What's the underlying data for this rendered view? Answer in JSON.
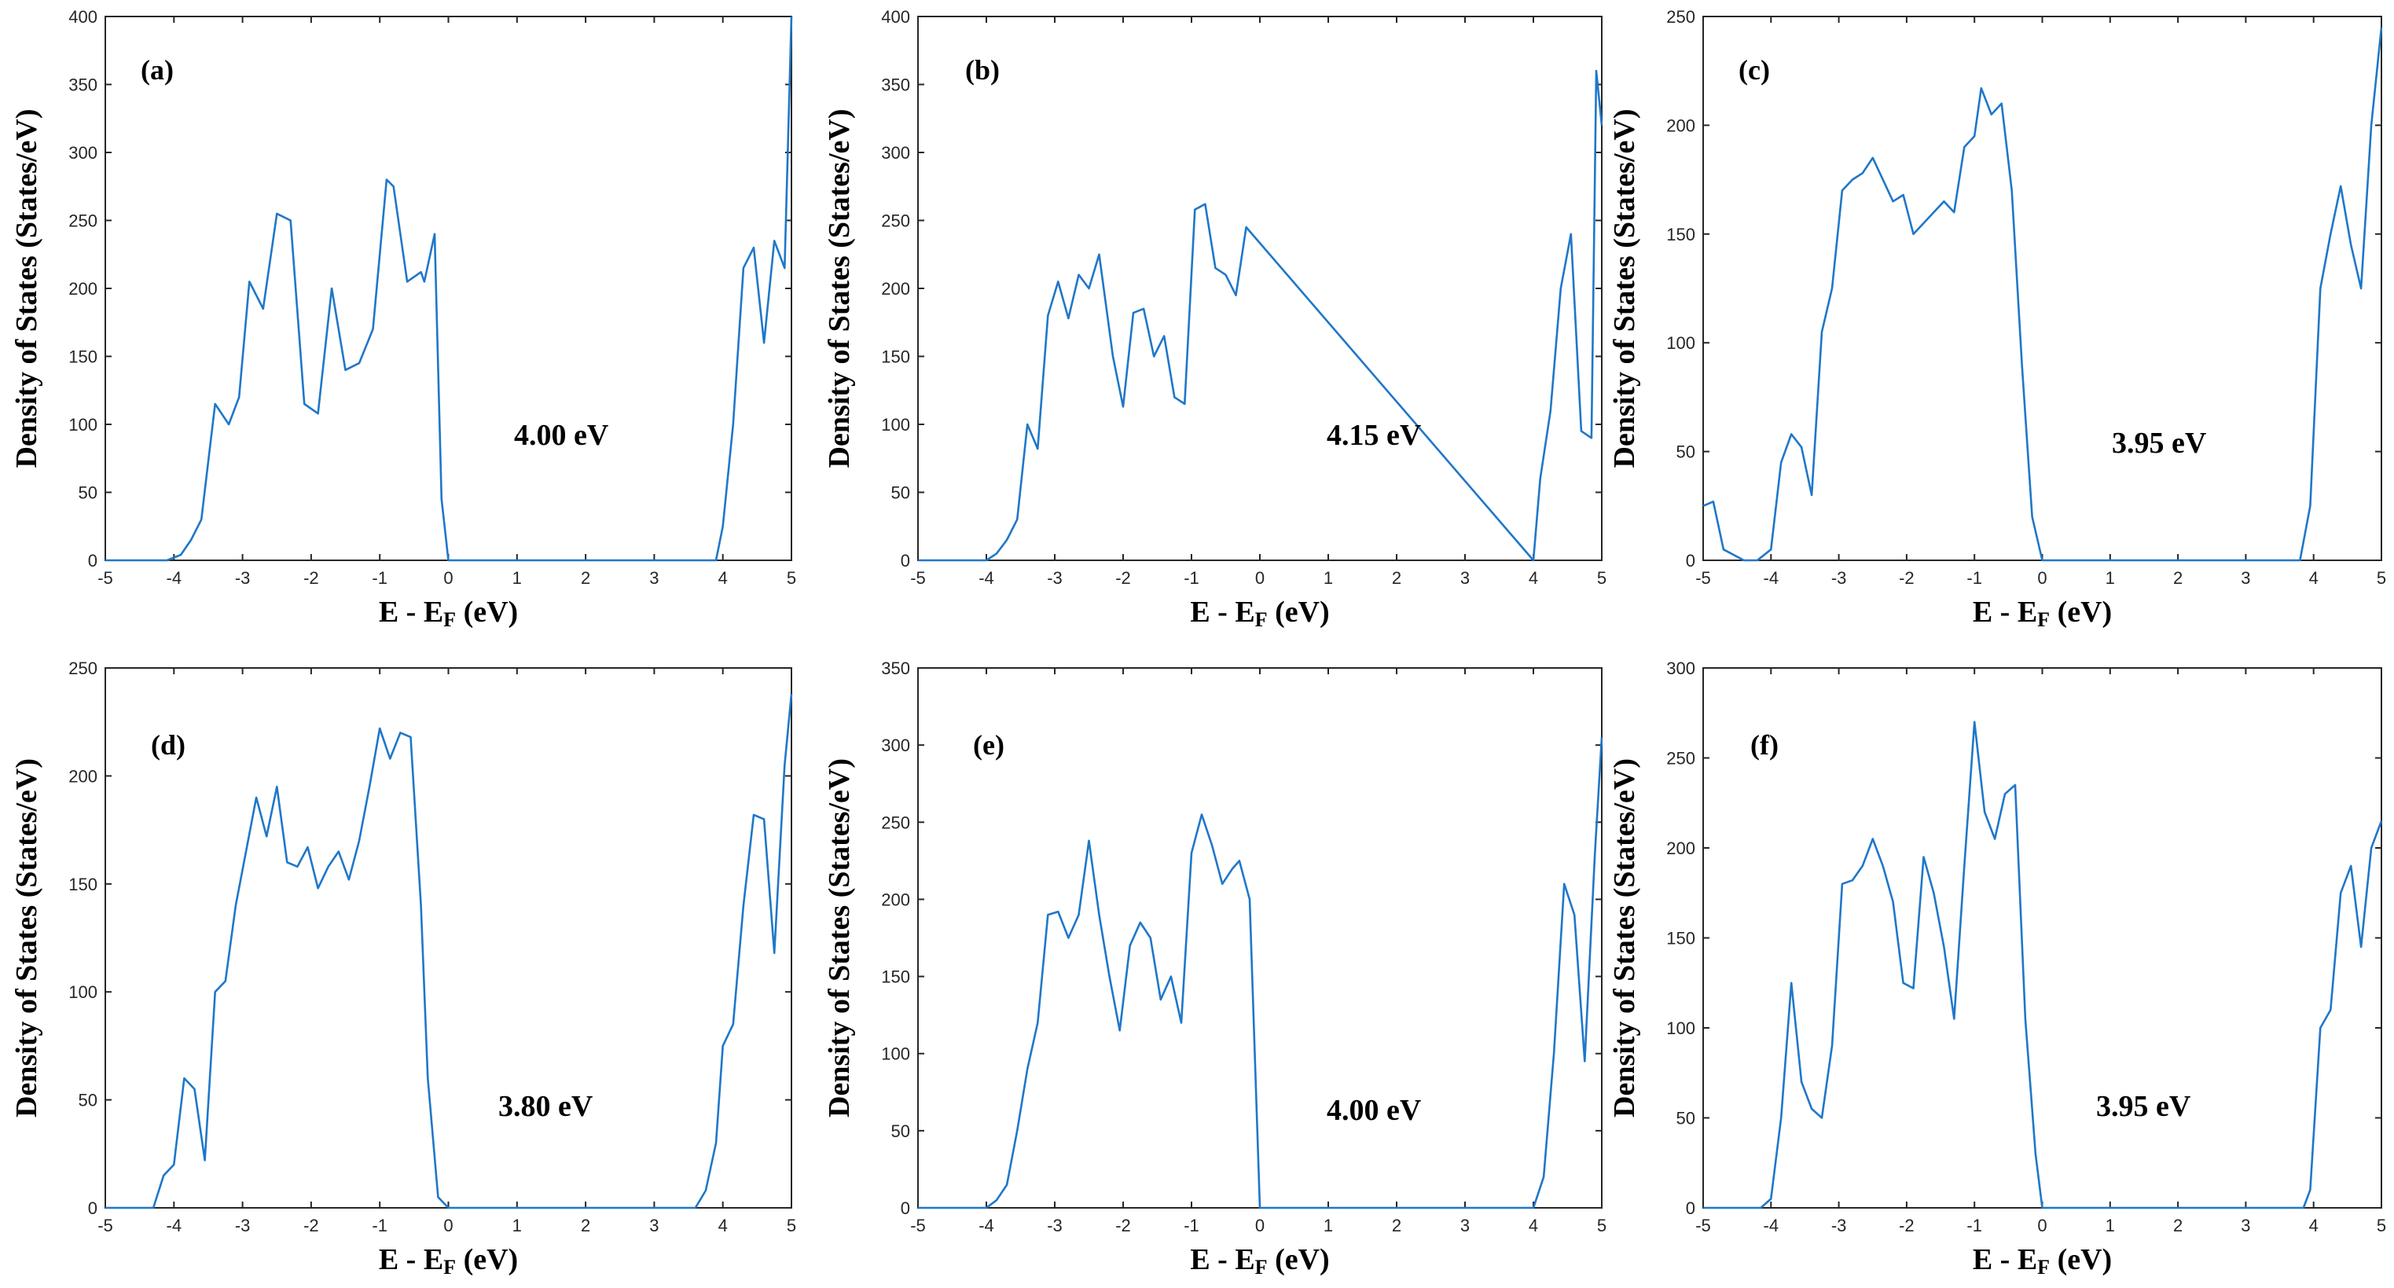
{
  "colors": {
    "series": "#1f77c9",
    "axis": "#262626"
  },
  "chart_data": [
    {
      "type": "line",
      "panel_label": "(a)",
      "band_gap_label": "4.00 eV",
      "xlabel_main": "E - E",
      "xlabel_sub": "F",
      "xlabel_unit": " (eV)",
      "ylabel": "Density of States (States/eV)",
      "xlim": [
        -5,
        5
      ],
      "ylim": [
        0,
        400
      ],
      "xticks": [
        -5,
        -4,
        -3,
        -2,
        -1,
        0,
        1,
        2,
        3,
        4,
        5
      ],
      "yticks": [
        0,
        50,
        100,
        150,
        200,
        250,
        300,
        350,
        400
      ],
      "series": [
        {
          "name": "DOS",
          "x": [
            -5,
            -4.1,
            -3.9,
            -3.75,
            -3.6,
            -3.4,
            -3.2,
            -3.05,
            -2.9,
            -2.7,
            -2.5,
            -2.3,
            -2.1,
            -1.9,
            -1.7,
            -1.5,
            -1.3,
            -1.1,
            -0.9,
            -0.8,
            -0.6,
            -0.4,
            -0.35,
            -0.2,
            -0.1,
            0,
            3.9,
            4.0,
            4.15,
            4.3,
            4.45,
            4.6,
            4.75,
            4.9,
            5.0
          ],
          "y": [
            0,
            0,
            4,
            15,
            30,
            115,
            100,
            120,
            205,
            185,
            255,
            250,
            115,
            108,
            200,
            140,
            145,
            170,
            280,
            275,
            205,
            212,
            205,
            240,
            45,
            0,
            0,
            25,
            100,
            215,
            230,
            160,
            235,
            215,
            400
          ]
        }
      ]
    },
    {
      "type": "line",
      "panel_label": "(b)",
      "band_gap_label": "4.15 eV",
      "xlabel_main": "E - E",
      "xlabel_sub": "F",
      "xlabel_unit": " (eV)",
      "ylabel": "Density of States (States/eV)",
      "xlim": [
        -5,
        5
      ],
      "ylim": [
        0,
        400
      ],
      "xticks": [
        -5,
        -4,
        -3,
        -2,
        -1,
        0,
        1,
        2,
        3,
        4,
        5
      ],
      "yticks": [
        0,
        50,
        100,
        150,
        200,
        250,
        300,
        350,
        400
      ],
      "series": [
        {
          "name": "DOS",
          "x": [
            -5,
            -4.0,
            -3.85,
            -3.7,
            -3.55,
            -3.4,
            -3.25,
            -3.1,
            -2.95,
            -2.8,
            -2.65,
            -2.5,
            -2.35,
            -2.15,
            -2.0,
            -1.85,
            -1.7,
            -1.55,
            -1.4,
            -1.25,
            -1.1,
            -0.95,
            -0.8,
            -0.65,
            -0.5,
            -0.35,
            -0.2,
            4.0,
            4.1,
            4.25,
            4.4,
            4.55,
            4.7,
            4.85,
            4.92,
            5.0
          ],
          "y": [
            0,
            0,
            5,
            15,
            30,
            100,
            82,
            180,
            205,
            178,
            210,
            200,
            225,
            150,
            113,
            182,
            185,
            150,
            165,
            120,
            115,
            258,
            262,
            215,
            210,
            195,
            245,
            0,
            60,
            110,
            200,
            240,
            95,
            90,
            360,
            320
          ]
        }
      ]
    },
    {
      "type": "line",
      "panel_label": "(c)",
      "band_gap_label": "3.95 eV",
      "xlabel_main": "E - E",
      "xlabel_sub": "F",
      "xlabel_unit": " (eV)",
      "ylabel": "Density of States (States/eV)",
      "xlim": [
        -5,
        5
      ],
      "ylim": [
        0,
        250
      ],
      "xticks": [
        -5,
        -4,
        -3,
        -2,
        -1,
        0,
        1,
        2,
        3,
        4,
        5
      ],
      "yticks": [
        0,
        50,
        100,
        150,
        200,
        250
      ],
      "series": [
        {
          "name": "DOS",
          "x": [
            -5,
            -4.85,
            -4.7,
            -4.4,
            -4.2,
            -4.0,
            -3.85,
            -3.7,
            -3.55,
            -3.4,
            -3.25,
            -3.1,
            -2.95,
            -2.8,
            -2.65,
            -2.5,
            -2.35,
            -2.2,
            -2.05,
            -1.9,
            -1.75,
            -1.6,
            -1.45,
            -1.3,
            -1.15,
            -1.0,
            -0.9,
            -0.75,
            -0.6,
            -0.45,
            -0.3,
            -0.15,
            0,
            3.8,
            3.95,
            4.1,
            4.25,
            4.4,
            4.55,
            4.7,
            4.85,
            5.0
          ],
          "y": [
            25,
            27,
            5,
            0,
            0,
            5,
            45,
            58,
            52,
            30,
            105,
            125,
            170,
            175,
            178,
            185,
            175,
            165,
            168,
            150,
            155,
            160,
            165,
            160,
            190,
            195,
            217,
            205,
            210,
            170,
            90,
            20,
            0,
            0,
            25,
            125,
            150,
            172,
            145,
            125,
            200,
            245
          ]
        }
      ]
    },
    {
      "type": "line",
      "panel_label": "(d)",
      "band_gap_label": "3.80 eV",
      "xlabel_main": "E - E",
      "xlabel_sub": "F",
      "xlabel_unit": " (eV)",
      "ylabel": "Density of States (States/eV)",
      "xlim": [
        -5,
        5
      ],
      "ylim": [
        0,
        250
      ],
      "xticks": [
        -5,
        -4,
        -3,
        -2,
        -1,
        0,
        1,
        2,
        3,
        4,
        5
      ],
      "yticks": [
        0,
        50,
        100,
        150,
        200,
        250
      ],
      "series": [
        {
          "name": "DOS",
          "x": [
            -5,
            -4.3,
            -4.15,
            -4.0,
            -3.85,
            -3.7,
            -3.55,
            -3.4,
            -3.25,
            -3.1,
            -2.95,
            -2.8,
            -2.65,
            -2.5,
            -2.35,
            -2.2,
            -2.05,
            -1.9,
            -1.75,
            -1.6,
            -1.45,
            -1.3,
            -1.15,
            -1.0,
            -0.85,
            -0.7,
            -0.55,
            -0.4,
            -0.3,
            -0.15,
            0,
            3.6,
            3.75,
            3.9,
            4.0,
            4.15,
            4.3,
            4.45,
            4.6,
            4.75,
            4.9,
            5.0
          ],
          "y": [
            0,
            0,
            15,
            20,
            60,
            55,
            22,
            100,
            105,
            140,
            165,
            190,
            172,
            195,
            160,
            158,
            167,
            148,
            158,
            165,
            152,
            170,
            195,
            222,
            208,
            220,
            218,
            140,
            60,
            5,
            0,
            0,
            8,
            30,
            75,
            85,
            140,
            182,
            180,
            118,
            205,
            238
          ]
        }
      ]
    },
    {
      "type": "line",
      "panel_label": "(e)",
      "band_gap_label": "4.00 eV",
      "xlabel_main": "E - E",
      "xlabel_sub": "F",
      "xlabel_unit": " (eV)",
      "ylabel": "Density of States (States/eV)",
      "xlim": [
        -5,
        5
      ],
      "ylim": [
        0,
        350
      ],
      "xticks": [
        -5,
        -4,
        -3,
        -2,
        -1,
        0,
        1,
        2,
        3,
        4,
        5
      ],
      "yticks": [
        0,
        50,
        100,
        150,
        200,
        250,
        300,
        350
      ],
      "series": [
        {
          "name": "DOS",
          "x": [
            -5,
            -4.0,
            -3.85,
            -3.7,
            -3.55,
            -3.4,
            -3.25,
            -3.1,
            -2.95,
            -2.8,
            -2.65,
            -2.5,
            -2.35,
            -2.2,
            -2.05,
            -1.9,
            -1.75,
            -1.6,
            -1.45,
            -1.3,
            -1.15,
            -1.0,
            -0.85,
            -0.7,
            -0.55,
            -0.4,
            -0.3,
            -0.15,
            0,
            4.0,
            4.15,
            4.3,
            4.45,
            4.6,
            4.75,
            4.9,
            5.0
          ],
          "y": [
            0,
            0,
            5,
            15,
            50,
            90,
            120,
            190,
            192,
            175,
            190,
            238,
            190,
            150,
            115,
            170,
            185,
            175,
            135,
            150,
            120,
            230,
            255,
            235,
            210,
            220,
            225,
            200,
            0,
            0,
            20,
            100,
            210,
            190,
            95,
            230,
            305
          ]
        }
      ]
    },
    {
      "type": "line",
      "panel_label": "(f)",
      "band_gap_label": "3.95 eV",
      "xlabel_main": "E - E",
      "xlabel_sub": "F",
      "xlabel_unit": " (eV)",
      "ylabel": "Density of States (States/eV)",
      "xlim": [
        -5,
        5
      ],
      "ylim": [
        0,
        300
      ],
      "xticks": [
        -5,
        -4,
        -3,
        -2,
        -1,
        0,
        1,
        2,
        3,
        4,
        5
      ],
      "yticks": [
        0,
        50,
        100,
        150,
        200,
        250,
        300
      ],
      "series": [
        {
          "name": "DOS",
          "x": [
            -5,
            -4.15,
            -4.0,
            -3.85,
            -3.7,
            -3.55,
            -3.4,
            -3.25,
            -3.1,
            -2.95,
            -2.8,
            -2.65,
            -2.5,
            -2.35,
            -2.2,
            -2.05,
            -1.9,
            -1.75,
            -1.6,
            -1.45,
            -1.3,
            -1.15,
            -1.0,
            -0.85,
            -0.7,
            -0.55,
            -0.4,
            -0.25,
            -0.1,
            0,
            3.85,
            3.95,
            4.1,
            4.25,
            4.4,
            4.55,
            4.7,
            4.85,
            5.0
          ],
          "y": [
            0,
            0,
            5,
            50,
            125,
            70,
            55,
            50,
            90,
            180,
            182,
            190,
            205,
            190,
            170,
            125,
            122,
            195,
            175,
            145,
            105,
            190,
            270,
            220,
            205,
            230,
            235,
            105,
            30,
            0,
            0,
            10,
            100,
            110,
            175,
            190,
            145,
            200,
            215
          ]
        }
      ]
    }
  ]
}
